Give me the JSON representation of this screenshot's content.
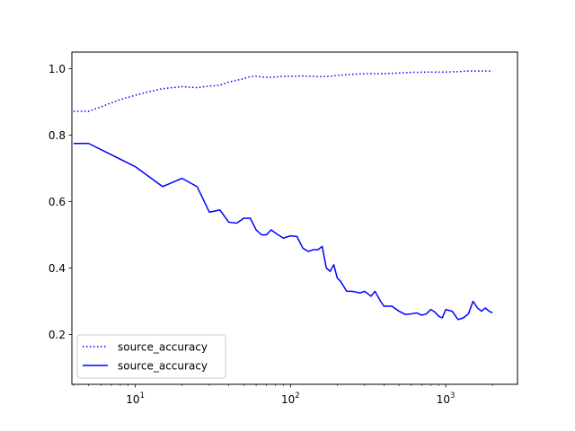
{
  "chart_data": {
    "type": "line",
    "title": "",
    "xlabel": "",
    "ylabel": "",
    "x_scale": "log",
    "xlim": [
      3.9,
      2900
    ],
    "ylim": [
      0.05,
      1.05
    ],
    "grid": false,
    "legend_position": "lower-left",
    "x_ticks": [
      {
        "value": 10,
        "base": "10",
        "exp": "1"
      },
      {
        "value": 100,
        "base": "10",
        "exp": "2"
      },
      {
        "value": 1000,
        "base": "10",
        "exp": "3"
      }
    ],
    "y_ticks": [
      {
        "value": 0.2,
        "label": "0.2"
      },
      {
        "value": 0.4,
        "label": "0.4"
      },
      {
        "value": 0.6,
        "label": "0.6"
      },
      {
        "value": 0.8,
        "label": "0.8"
      },
      {
        "value": 1.0,
        "label": "1.0"
      }
    ],
    "series": [
      {
        "name": "source_accuracy",
        "color": "#0000ff",
        "style": "dotted",
        "x": [
          4,
          5,
          6,
          7,
          8,
          10,
          12,
          15,
          20,
          25,
          30,
          35,
          40,
          45,
          50,
          55,
          60,
          70,
          80,
          90,
          100,
          120,
          150,
          180,
          200,
          250,
          300,
          400,
          500,
          600,
          800,
          1000,
          1200,
          1400,
          1600,
          2000
        ],
        "y": [
          0.872,
          0.872,
          0.885,
          0.897,
          0.907,
          0.92,
          0.93,
          0.94,
          0.946,
          0.943,
          0.948,
          0.95,
          0.96,
          0.965,
          0.97,
          0.976,
          0.977,
          0.974,
          0.975,
          0.977,
          0.977,
          0.978,
          0.976,
          0.977,
          0.98,
          0.983,
          0.985,
          0.985,
          0.987,
          0.989,
          0.99,
          0.99,
          0.991,
          0.993,
          0.993,
          0.993
        ]
      },
      {
        "name": "source_accuracy",
        "color": "#0000ff",
        "style": "solid",
        "x": [
          4,
          5,
          10,
          15,
          20,
          25,
          30,
          35,
          40,
          45,
          50,
          55,
          60,
          65,
          70,
          75,
          80,
          90,
          100,
          110,
          120,
          130,
          140,
          150,
          160,
          170,
          180,
          190,
          200,
          210,
          230,
          250,
          280,
          300,
          330,
          350,
          380,
          400,
          450,
          500,
          550,
          600,
          650,
          700,
          750,
          800,
          850,
          900,
          950,
          1000,
          1100,
          1200,
          1300,
          1400,
          1500,
          1600,
          1700,
          1800,
          1900,
          2000
        ],
        "y": [
          0.775,
          0.775,
          0.705,
          0.645,
          0.67,
          0.645,
          0.568,
          0.575,
          0.538,
          0.535,
          0.55,
          0.55,
          0.515,
          0.5,
          0.5,
          0.515,
          0.505,
          0.49,
          0.497,
          0.495,
          0.46,
          0.45,
          0.455,
          0.455,
          0.465,
          0.4,
          0.39,
          0.41,
          0.37,
          0.36,
          0.33,
          0.33,
          0.325,
          0.33,
          0.315,
          0.33,
          0.3,
          0.285,
          0.285,
          0.27,
          0.26,
          0.262,
          0.265,
          0.258,
          0.262,
          0.275,
          0.268,
          0.255,
          0.25,
          0.275,
          0.27,
          0.245,
          0.25,
          0.262,
          0.3,
          0.28,
          0.27,
          0.28,
          0.27,
          0.265
        ]
      }
    ]
  }
}
